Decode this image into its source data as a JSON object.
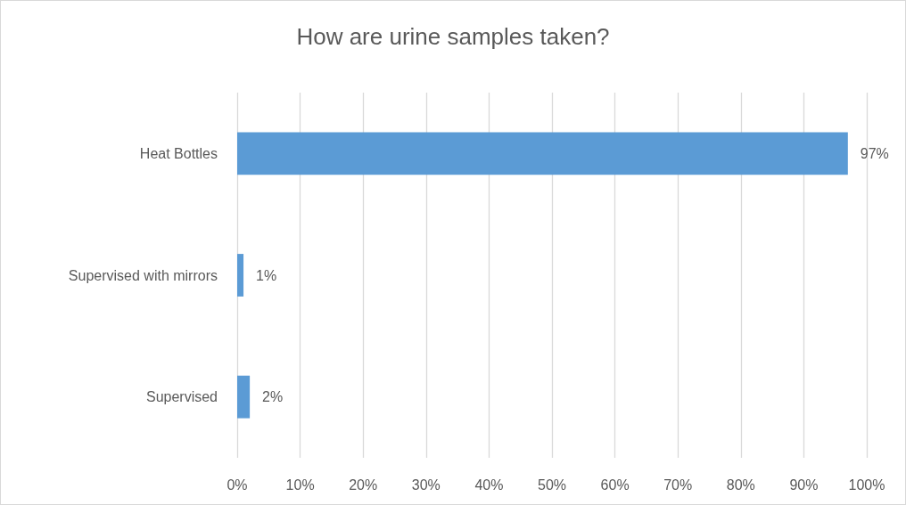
{
  "chart_data": {
    "type": "bar",
    "title": "How are urine samples taken?",
    "orientation": "horizontal",
    "categories": [
      "Heat Bottles",
      "Supervised with mirrors",
      "Supervised"
    ],
    "values": [
      97,
      1,
      2
    ],
    "color": "#5b9bd5",
    "value_labels": [
      "97%",
      "1%",
      "2%"
    ],
    "xlim": [
      0,
      100
    ],
    "xticks": [
      {
        "value": 0,
        "label": "0%"
      },
      {
        "value": 10,
        "label": "10%"
      },
      {
        "value": 20,
        "label": "20%"
      },
      {
        "value": 30,
        "label": "30%"
      },
      {
        "value": 40,
        "label": "40%"
      },
      {
        "value": 50,
        "label": "50%"
      },
      {
        "value": 60,
        "label": "60%"
      },
      {
        "value": 70,
        "label": "70%"
      },
      {
        "value": 80,
        "label": "80%"
      },
      {
        "value": 90,
        "label": "90%"
      },
      {
        "value": 100,
        "label": "100%"
      }
    ],
    "grid": "x"
  }
}
